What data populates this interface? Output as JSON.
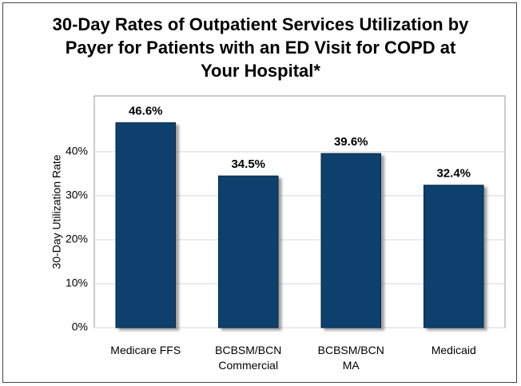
{
  "chart_data": {
    "type": "bar",
    "title": "30-Day Rates of Outpatient Services Utilization by\nPayer for Patients with an ED Visit for COPD  at\nYour Hospital*",
    "y_label": "30-Day Utilization Rate",
    "categories": [
      "Medicare FFS",
      "BCBSM/BCN\nCommercial",
      "BCBSM/BCN\nMA",
      "Medicaid"
    ],
    "values": [
      46.6,
      34.5,
      39.6,
      32.4
    ],
    "value_labels": [
      "46.6%",
      "34.5%",
      "39.6%",
      "32.4%"
    ],
    "color": "#0b3f6c",
    "ylim": [
      0,
      52.7
    ],
    "yticks": [
      {
        "value": 0,
        "label": "0%"
      },
      {
        "value": 10,
        "label": "10%"
      },
      {
        "value": 20,
        "label": "20%"
      },
      {
        "value": 30,
        "label": "30%"
      },
      {
        "value": 40,
        "label": "40%"
      }
    ],
    "grid": true
  }
}
